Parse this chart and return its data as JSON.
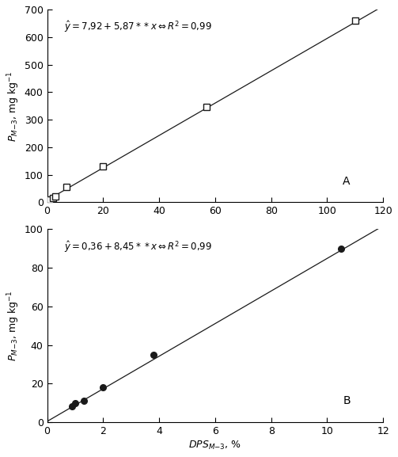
{
  "panel_A": {
    "x": [
      0.5,
      1.0,
      2.0,
      3.0,
      7.0,
      20.0,
      57.0,
      110.0
    ],
    "y": [
      5,
      10,
      15,
      20,
      55,
      130,
      345,
      660
    ],
    "ylabel": "$P_{M\\mathregular{-3}}$, mg kg$^{-1}$",
    "xlim": [
      0,
      120
    ],
    "ylim": [
      0,
      700
    ],
    "yticks": [
      0,
      100,
      200,
      300,
      400,
      500,
      600,
      700
    ],
    "xticks": [
      0,
      20,
      40,
      60,
      80,
      100,
      120
    ],
    "intercept": 7.92,
    "slope": 5.87,
    "label": "A"
  },
  "panel_B": {
    "x": [
      0.9,
      1.0,
      1.3,
      2.0,
      3.8,
      10.5
    ],
    "y": [
      8,
      10,
      11,
      18,
      35,
      90
    ],
    "ylabel": "$P_{M\\mathregular{-3}}$, mg kg$^{-1}$",
    "xlabel": "$DPS_{M\\mathregular{-3}}$, %",
    "xlim": [
      0,
      12
    ],
    "ylim": [
      0,
      100
    ],
    "yticks": [
      0,
      20,
      40,
      60,
      80,
      100
    ],
    "xticks": [
      0,
      2,
      4,
      6,
      8,
      10,
      12
    ],
    "intercept": 0.36,
    "slope": 8.45,
    "label": "B"
  },
  "eq_A": "$\\hat{y} = 7{,}92 + 5{,}87 * *x \\Leftrightarrow R^2 = 0{,}99$",
  "eq_B": "$\\hat{y} = 0{,}36 + 8{,}45 * *x \\Leftrightarrow R^2 = 0{,}99$",
  "marker_color": "#1a1a1a",
  "line_color": "#1a1a1a"
}
